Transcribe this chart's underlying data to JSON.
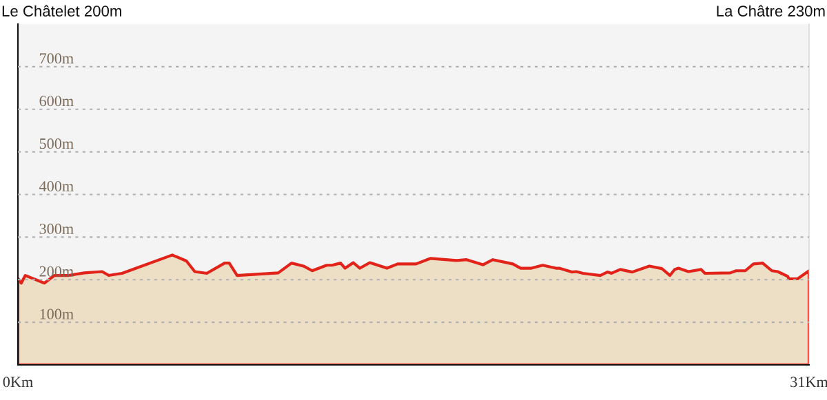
{
  "chart_data": {
    "type": "area",
    "annotations": [
      "Le Châtelet 200m",
      "La Châtre 230m"
    ],
    "x": [
      0,
      0.13,
      0.29,
      1.04,
      1.43,
      2.0,
      2.6,
      3.3,
      3.56,
      4.08,
      6.05,
      6.6,
      6.93,
      7.4,
      8.1,
      8.28,
      8.59,
      10.2,
      10.72,
      11.19,
      11.53,
      12.1,
      12.31,
      12.64,
      12.82,
      13.14,
      13.4,
      13.79,
      14.46,
      14.88,
      15.6,
      16.17,
      17.19,
      17.58,
      18.22,
      18.61,
      19.39,
      19.7,
      20.12,
      20.56,
      21.08,
      21.21,
      21.7,
      21.88,
      22.14,
      22.82,
      23.1,
      23.26,
      23.6,
      24.07,
      24.74,
      25.23,
      25.55,
      25.73,
      25.88,
      26.27,
      26.77,
      26.92,
      27.91,
      28.14,
      28.5,
      28.82,
      29.18,
      29.54,
      29.77,
      30.16,
      30.21,
      30.55,
      31
    ],
    "series": [
      {
        "color": "#e2231a",
        "values": [
          203,
          192,
          210,
          192,
          210,
          210,
          216,
          219,
          210,
          215,
          258,
          244,
          219,
          215,
          239,
          239,
          210,
          216,
          239,
          232,
          221,
          234,
          234,
          239,
          227,
          240,
          227,
          240,
          227,
          237,
          237,
          250,
          245,
          247,
          235,
          247,
          237,
          227,
          227,
          234,
          227,
          227,
          218,
          219,
          215,
          210,
          218,
          215,
          224,
          218,
          232,
          226,
          210,
          224,
          227,
          219,
          224,
          215,
          216,
          221,
          221,
          237,
          239,
          221,
          219,
          208,
          202,
          202,
          221
        ]
      }
    ],
    "xlim": [
      0,
      31
    ],
    "xticks": [
      {
        "value": 0,
        "label": "0Km"
      },
      {
        "value": 31,
        "label": "31Km"
      }
    ],
    "ylim": [
      0,
      800
    ],
    "yticks": [
      {
        "value": 100,
        "label": "100m"
      },
      {
        "value": 200,
        "label": "200m"
      },
      {
        "value": 300,
        "label": "300m"
      },
      {
        "value": 400,
        "label": "400m"
      },
      {
        "value": 500,
        "label": "500m"
      },
      {
        "value": 600,
        "label": "600m"
      },
      {
        "value": 700,
        "label": "700m"
      }
    ],
    "grid": "y"
  }
}
